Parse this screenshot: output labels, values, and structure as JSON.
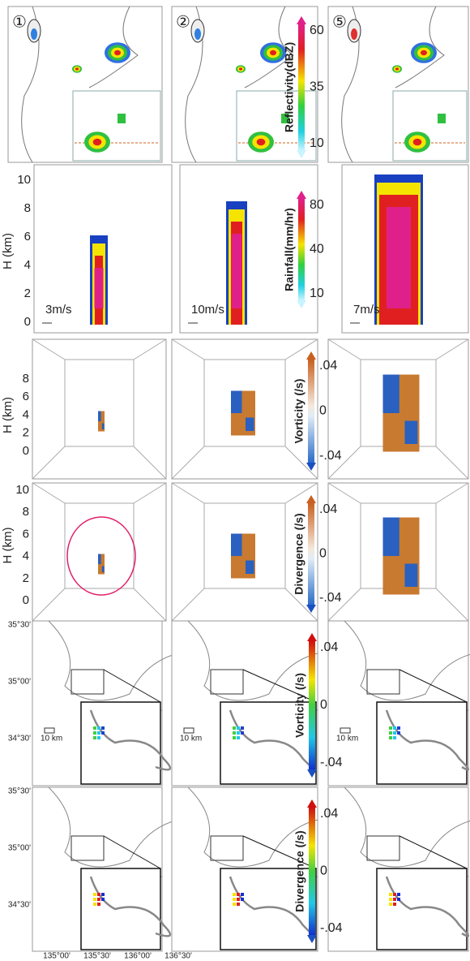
{
  "reflectivity_row": {
    "panel_labels": [
      "①",
      "②",
      "⑤"
    ],
    "colorbar": {
      "label": "Reflectivity(dBZ)",
      "ticks": [
        "60",
        "35",
        "10"
      ]
    }
  },
  "rainfall_row": {
    "axis_label": "H (km)",
    "axis_ticks": [
      "10",
      "8",
      "6",
      "4",
      "2",
      "0"
    ],
    "wind_scales": [
      "3m/s",
      "10m/s",
      "7m/s"
    ],
    "colorbar": {
      "label": "Rainfall(mm/hr)",
      "ticks": [
        "80",
        "40",
        "10"
      ]
    }
  },
  "vorticity_3d_row": {
    "axis_label": "H (km)",
    "axis_ticks": [
      "8",
      "6",
      "4",
      "2",
      "0"
    ],
    "colorbar": {
      "label": "Vorticity (/s)",
      "ticks": [
        ".04",
        "0",
        "-.04"
      ]
    }
  },
  "divergence_3d_row": {
    "axis_label": "H (km)",
    "axis_ticks": [
      "10",
      "8",
      "6",
      "4",
      "2",
      "0"
    ],
    "colorbar": {
      "label": "Divergence (/s)",
      "ticks": [
        ".04",
        "0",
        "-.04"
      ]
    }
  },
  "vorticity_map_row": {
    "lat_labels": [
      "35°30'",
      "35°00'",
      "34°30'"
    ],
    "scale_labels": [
      "10 km",
      "10 km",
      "10 km"
    ],
    "colorbar": {
      "label": "Vorticity (/s)",
      "ticks": [
        ".04",
        "0",
        "-.04"
      ]
    }
  },
  "divergence_map_row": {
    "lat_labels": [
      "35°30'",
      "35°00'",
      "34°30'"
    ],
    "lon_labels": [
      "135°00'",
      "135°30'",
      "136°00'",
      "136°30'"
    ],
    "colorbar": {
      "label": "Divergence (/s)",
      "ticks": [
        ".04",
        "0",
        "-.04"
      ]
    }
  }
}
